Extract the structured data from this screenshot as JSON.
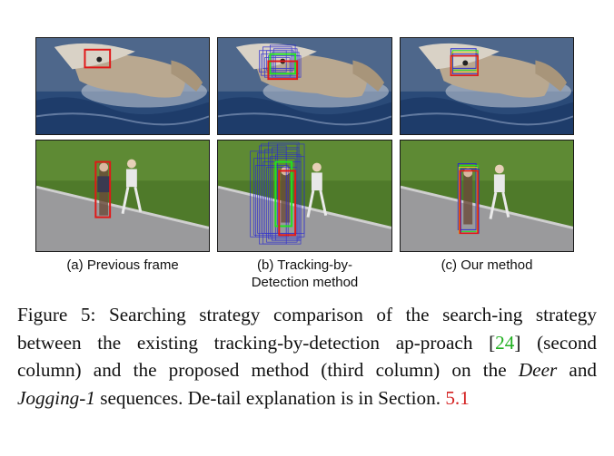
{
  "figure": {
    "columns": [
      {
        "label": "(a) Previous frame"
      },
      {
        "label_line1": "(b) Tracking-by-",
        "label_line2": "Detection method"
      },
      {
        "label": "(c) Our method"
      }
    ],
    "caption": {
      "prefix": "Figure 5: Searching strategy comparison of the search-ing strategy between the existing tracking-by-detection ap-proach [",
      "ref1": "24",
      "mid1": "] (second column) and the proposed method (third column) on the ",
      "seq1": "Deer",
      "mid2": " and ",
      "seq2": "Jogging-1",
      "mid3": " sequences. De-tail explanation is in Section. ",
      "ref2": "5.1"
    },
    "colors": {
      "water": "#2a4a78",
      "grass": "#4f7a2a",
      "road": "#9a9a9c",
      "red_box": "#e01818",
      "green_box": "#22e022",
      "blue_box": "#2a2ad0",
      "yellow_box": "#e0c020",
      "ref_green": "#22b022",
      "ref_red": "#d42020"
    }
  }
}
